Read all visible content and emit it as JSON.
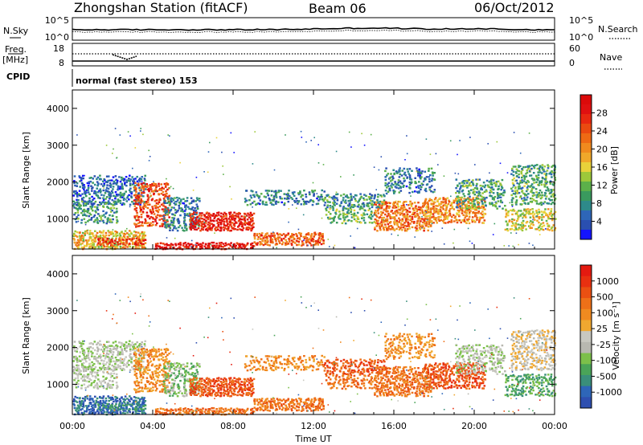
{
  "header": {
    "station": "Zhongshan Station (fitACF)",
    "beam": "Beam 06",
    "date": "06/Oct/2012"
  },
  "strip_panels": {
    "nsky": {
      "label": "N.Sky",
      "left_ticks": [
        "10^5",
        "10^0"
      ],
      "right_ticks": [
        "10^5",
        "10^0"
      ],
      "right_label": "N.Search"
    },
    "freq": {
      "label_line1": "Freq.",
      "label_line2": "[MHz]",
      "left_ticks": [
        "18",
        "8"
      ],
      "right_ticks": [
        "60",
        "0"
      ],
      "right_label": "Nave"
    },
    "cpid": {
      "label": "CPID",
      "mode_text": "normal (fast stereo) 153"
    }
  },
  "chart_data": [
    {
      "type": "heatmap",
      "quantity": "Power",
      "ylabel": "Slant Range [km]",
      "xlabel": "Time UT",
      "x_ticks": [
        "00:00",
        "04:00",
        "08:00",
        "12:00",
        "16:00",
        "20:00",
        "00:00"
      ],
      "xlim_hours": [
        0,
        24
      ],
      "y_ticks": [
        1000,
        2000,
        3000,
        4000
      ],
      "ylim_km": [
        180,
        4500
      ],
      "colorbar": {
        "label": "Power [dB]",
        "ticks": [
          "4",
          "8",
          "12",
          "16",
          "20",
          "24",
          "28"
        ],
        "range": [
          0,
          30
        ],
        "colors": [
          "#1414ff",
          "#2a4fb0",
          "#2e66b8",
          "#2e8a8a",
          "#3a9a5e",
          "#5cb04a",
          "#9dc83a",
          "#e8d23a",
          "#f0a82a",
          "#f08a1e",
          "#ee6a14",
          "#ea4a10",
          "#e82810",
          "#e01010",
          "#dc0a0a"
        ]
      }
    },
    {
      "type": "heatmap",
      "quantity": "Velocity",
      "ylabel": "Slant Range [km]",
      "xlabel": "Time UT",
      "x_ticks": [
        "00:00",
        "04:00",
        "08:00",
        "12:00",
        "16:00",
        "20:00",
        "00:00"
      ],
      "xlim_hours": [
        0,
        24
      ],
      "y_ticks": [
        1000,
        2000,
        3000,
        4000
      ],
      "ylim_km": [
        180,
        4500
      ],
      "colorbar": {
        "label": "Velocity [m s⁻¹]",
        "ticks": [
          "1000",
          "500",
          "100",
          "25",
          "-25",
          "-100",
          "-500",
          "-1000"
        ],
        "colors": [
          "#2e4fb0",
          "#2e66b8",
          "#3a8f7a",
          "#4aa458",
          "#7cc04a",
          "#b8b8b0",
          "#c8c8c0",
          "#f0a830",
          "#f08a20",
          "#ee7018",
          "#ea5012",
          "#e83010",
          "#e41a10"
        ]
      }
    }
  ]
}
